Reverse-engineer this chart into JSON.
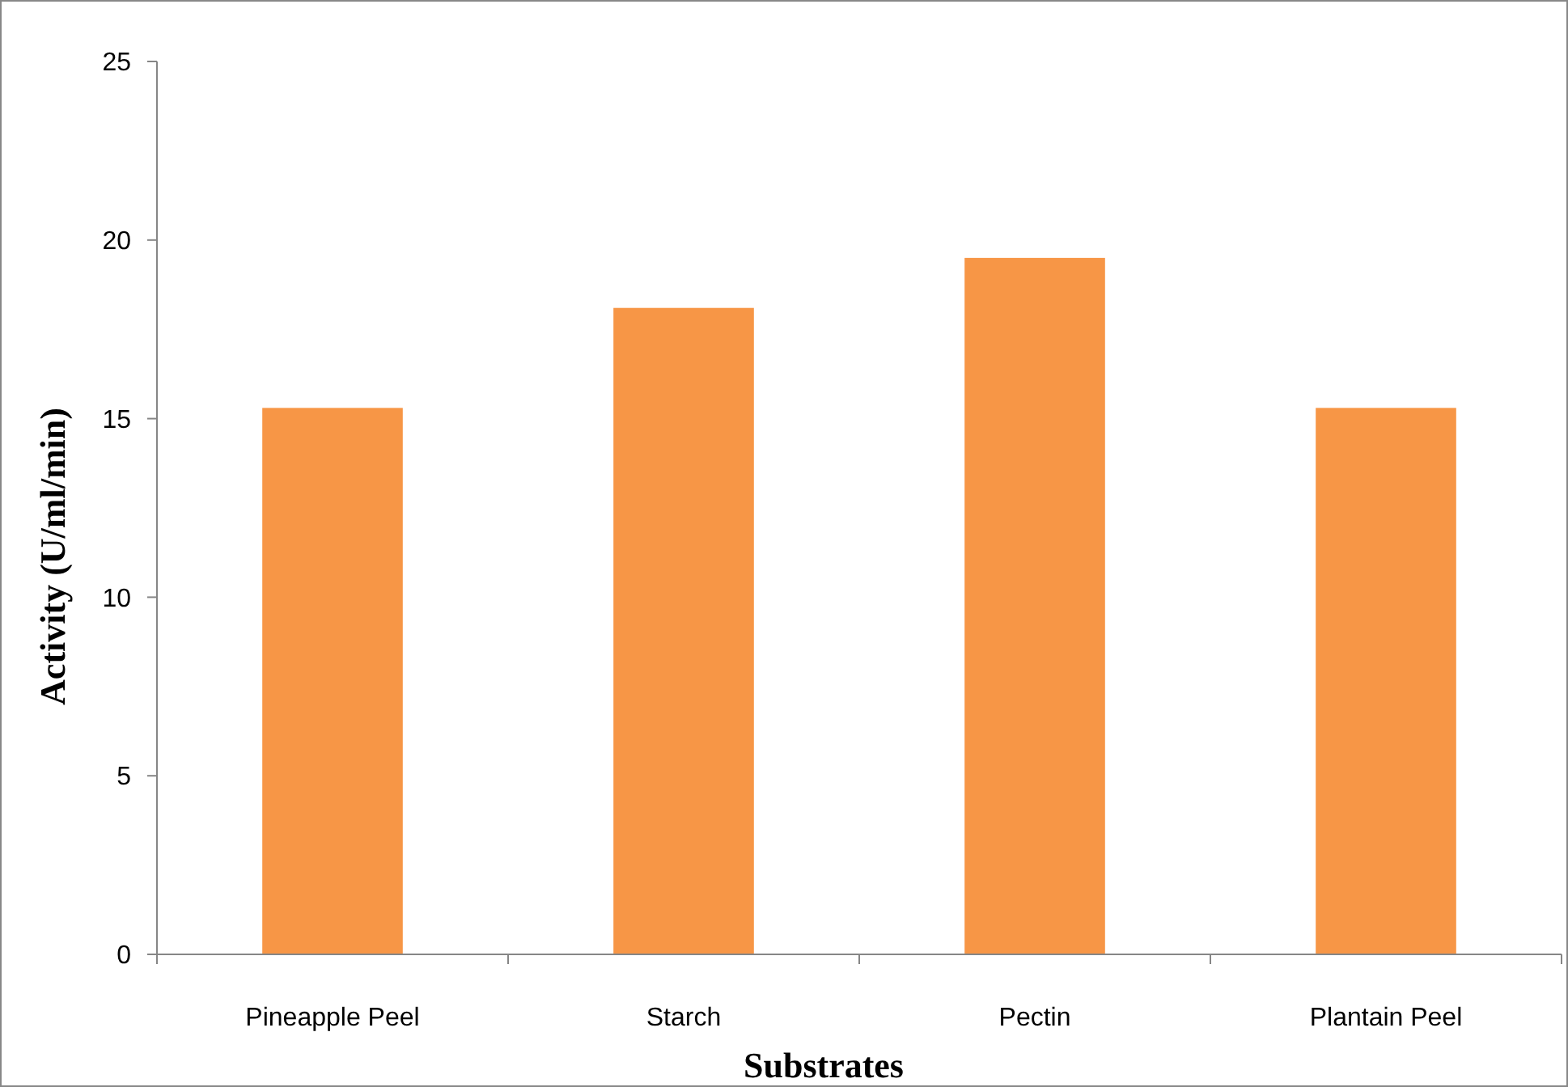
{
  "chart_data": {
    "type": "bar",
    "xlabel": "Substrates",
    "ylabel": "Activity (U/ml/min)",
    "categories": [
      "Pineapple Peel",
      "Starch",
      "Pectin",
      "Plantain Peel"
    ],
    "values": [
      15.3,
      18.1,
      19.5,
      15.3
    ],
    "color": "#f79646",
    "ylim": [
      0,
      25
    ],
    "yticks": [
      0,
      5,
      10,
      15,
      20,
      25
    ],
    "grid": false
  }
}
